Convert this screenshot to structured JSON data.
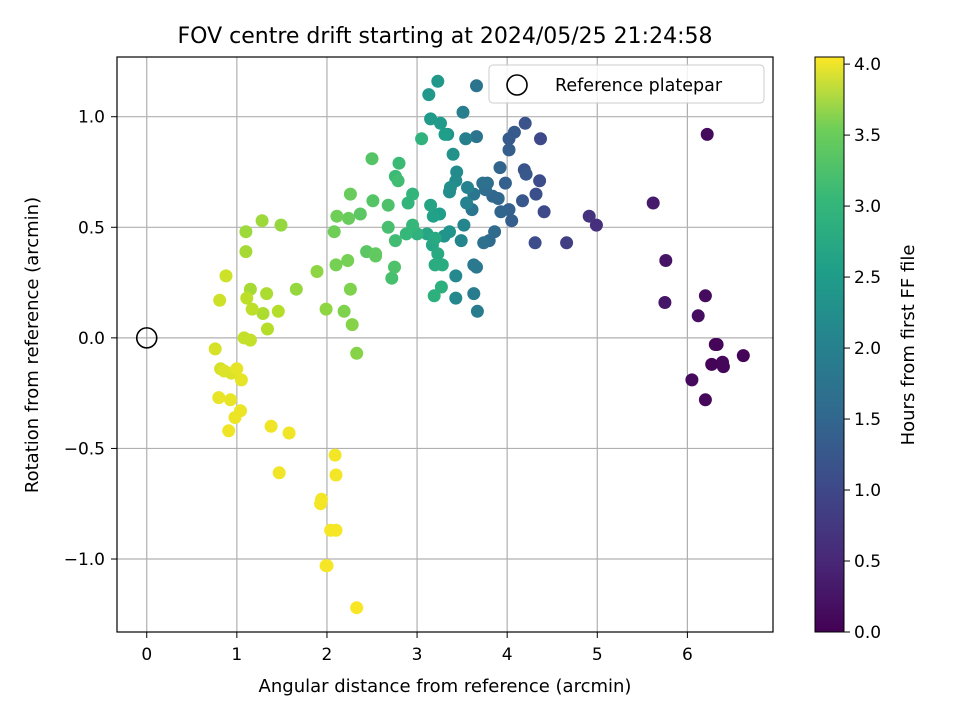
{
  "chart_data": {
    "type": "scatter",
    "title": "FOV centre drift starting at 2024/05/25 21:24:58",
    "xlabel": "Angular distance from reference (arcmin)",
    "ylabel": "Rotation from reference (arcmin)",
    "xlim": [
      -0.33,
      6.95
    ],
    "ylim": [
      -1.33,
      1.27
    ],
    "xticks": [
      0,
      1,
      2,
      3,
      4,
      5,
      6
    ],
    "xtick_labels": [
      "0",
      "1",
      "2",
      "3",
      "4",
      "5",
      "6"
    ],
    "yticks": [
      -1.0,
      -0.5,
      0.0,
      0.5,
      1.0
    ],
    "ytick_labels": [
      "−1.0",
      "−0.5",
      "0.0",
      "0.5",
      "1.0"
    ],
    "grid": true,
    "colormap": "viridis",
    "colorbar": {
      "label": "Hours from first FF file",
      "range": [
        0.0,
        4.05
      ],
      "ticks": [
        0.0,
        0.5,
        1.0,
        1.5,
        2.0,
        2.5,
        3.0,
        3.5,
        4.0
      ],
      "tick_labels": [
        "0.0",
        "0.5",
        "1.0",
        "1.5",
        "2.0",
        "2.5",
        "3.0",
        "3.5",
        "4.0"
      ]
    },
    "legend": {
      "position": "top-right",
      "entries": [
        "Reference platepar"
      ]
    },
    "reference_point": {
      "x": 0.0,
      "y": 0.0,
      "label": "Reference platepar"
    },
    "series": [
      {
        "points": [
          [
            6.22,
            0.92,
            0.1
          ],
          [
            6.62,
            -0.08,
            0.05
          ],
          [
            6.4,
            -0.13,
            0.07
          ],
          [
            6.39,
            -0.11,
            0.07
          ],
          [
            6.31,
            -0.03,
            0.06
          ],
          [
            6.33,
            -0.03,
            0.06
          ],
          [
            6.27,
            -0.12,
            0.05
          ],
          [
            6.2,
            -0.28,
            0.08
          ],
          [
            6.05,
            -0.19,
            0.1
          ],
          [
            6.2,
            0.19,
            0.12
          ],
          [
            6.12,
            0.1,
            0.15
          ],
          [
            5.76,
            0.35,
            0.22
          ],
          [
            5.75,
            0.16,
            0.25
          ],
          [
            5.62,
            0.61,
            0.3
          ],
          [
            4.99,
            0.51,
            0.55
          ],
          [
            4.91,
            0.55,
            0.6
          ],
          [
            4.66,
            0.43,
            0.75
          ],
          [
            4.41,
            0.57,
            0.9
          ],
          [
            4.31,
            0.43,
            0.95
          ],
          [
            4.37,
            0.9,
            0.9
          ],
          [
            4.36,
            0.71,
            0.95
          ],
          [
            4.32,
            0.65,
            1.0
          ],
          [
            4.2,
            0.97,
            1.05
          ],
          [
            4.19,
            0.76,
            1.05
          ],
          [
            4.21,
            0.74,
            1.1
          ],
          [
            4.17,
            0.62,
            1.1
          ],
          [
            4.08,
            0.93,
            1.15
          ],
          [
            4.02,
            0.9,
            1.15
          ],
          [
            4.02,
            0.85,
            1.2
          ],
          [
            4.05,
            0.53,
            1.2
          ],
          [
            4.02,
            0.58,
            1.25
          ],
          [
            3.98,
            0.7,
            1.25
          ],
          [
            3.93,
            0.57,
            1.3
          ],
          [
            3.92,
            0.77,
            1.3
          ],
          [
            3.9,
            0.63,
            1.35
          ],
          [
            3.84,
            0.64,
            1.35
          ],
          [
            3.86,
            0.48,
            1.4
          ],
          [
            3.8,
            0.44,
            1.4
          ],
          [
            3.78,
            0.7,
            1.45
          ],
          [
            3.76,
            0.67,
            1.45
          ],
          [
            3.73,
            0.7,
            1.5
          ],
          [
            3.74,
            0.43,
            1.5
          ],
          [
            3.66,
            1.14,
            1.55
          ],
          [
            3.66,
            0.91,
            1.55
          ],
          [
            3.63,
            0.65,
            1.6
          ],
          [
            3.61,
            0.58,
            1.6
          ],
          [
            3.63,
            0.33,
            1.65
          ],
          [
            3.66,
            0.32,
            1.65
          ],
          [
            3.67,
            0.12,
            1.7
          ],
          [
            3.63,
            0.2,
            1.7
          ],
          [
            3.54,
            0.9,
            1.75
          ],
          [
            3.51,
            1.02,
            1.75
          ],
          [
            3.56,
            0.68,
            1.8
          ],
          [
            3.55,
            0.61,
            1.8
          ],
          [
            3.52,
            0.51,
            1.85
          ],
          [
            3.49,
            0.44,
            1.85
          ],
          [
            3.43,
            0.28,
            1.9
          ],
          [
            3.43,
            0.18,
            1.9
          ],
          [
            3.44,
            0.75,
            1.95
          ],
          [
            3.43,
            0.71,
            1.95
          ],
          [
            3.37,
            0.68,
            2.0
          ],
          [
            3.36,
            0.66,
            2.0
          ],
          [
            3.4,
            0.83,
            2.05
          ],
          [
            3.34,
            0.92,
            2.05
          ],
          [
            3.36,
            0.48,
            2.1
          ],
          [
            3.3,
            0.46,
            2.1
          ],
          [
            3.23,
            1.16,
            2.15
          ],
          [
            3.13,
            1.1,
            2.15
          ],
          [
            3.15,
            0.99,
            2.2
          ],
          [
            3.26,
            0.97,
            2.2
          ],
          [
            3.31,
            0.92,
            2.25
          ],
          [
            3.25,
            0.56,
            2.25
          ],
          [
            3.18,
            0.55,
            2.3
          ],
          [
            3.15,
            0.6,
            2.35
          ],
          [
            3.11,
            0.47,
            2.4
          ],
          [
            3.17,
            0.42,
            2.4
          ],
          [
            3.2,
            0.45,
            2.45
          ],
          [
            3.23,
            0.38,
            2.45
          ],
          [
            3.2,
            0.33,
            2.5
          ],
          [
            3.28,
            0.33,
            2.5
          ],
          [
            3.27,
            0.23,
            2.55
          ],
          [
            3.19,
            0.19,
            2.55
          ],
          [
            3.05,
            0.9,
            2.6
          ],
          [
            3.0,
            0.47,
            2.6
          ],
          [
            2.95,
            0.65,
            2.65
          ],
          [
            2.9,
            0.61,
            2.65
          ],
          [
            2.95,
            0.51,
            2.7
          ],
          [
            2.88,
            0.47,
            2.7
          ],
          [
            2.8,
            0.79,
            2.75
          ],
          [
            2.76,
            0.73,
            2.75
          ],
          [
            2.79,
            0.71,
            2.8
          ],
          [
            2.76,
            0.44,
            2.8
          ],
          [
            2.68,
            0.5,
            2.85
          ],
          [
            2.72,
            0.27,
            2.85
          ],
          [
            2.75,
            0.32,
            2.9
          ],
          [
            2.68,
            0.6,
            2.9
          ],
          [
            2.5,
            0.81,
            2.95
          ],
          [
            2.51,
            0.62,
            2.95
          ],
          [
            2.37,
            0.56,
            3.0
          ],
          [
            2.44,
            0.39,
            3.0
          ],
          [
            2.54,
            0.38,
            3.05
          ],
          [
            2.54,
            0.37,
            3.05
          ],
          [
            2.26,
            0.65,
            3.1
          ],
          [
            2.24,
            0.54,
            3.1
          ],
          [
            2.11,
            0.55,
            3.15
          ],
          [
            2.08,
            0.48,
            3.15
          ],
          [
            2.23,
            0.35,
            3.2
          ],
          [
            2.1,
            0.33,
            3.2
          ],
          [
            2.26,
            0.22,
            3.25
          ],
          [
            2.19,
            0.12,
            3.25
          ],
          [
            2.28,
            0.06,
            3.3
          ],
          [
            2.33,
            -0.07,
            3.3
          ],
          [
            1.99,
            0.13,
            3.35
          ],
          [
            1.89,
            0.3,
            3.35
          ],
          [
            1.66,
            0.22,
            3.4
          ],
          [
            1.49,
            0.51,
            3.4
          ],
          [
            1.28,
            0.53,
            3.45
          ],
          [
            1.1,
            0.48,
            3.45
          ],
          [
            1.1,
            0.39,
            3.5
          ],
          [
            1.15,
            0.22,
            3.5
          ],
          [
            1.33,
            0.2,
            3.55
          ],
          [
            1.29,
            0.11,
            3.55
          ],
          [
            1.46,
            0.12,
            3.6
          ],
          [
            1.34,
            0.04,
            3.6
          ],
          [
            1.17,
            0.13,
            3.65
          ],
          [
            1.11,
            0.18,
            3.65
          ],
          [
            1.08,
            0.0,
            3.7
          ],
          [
            1.15,
            -0.01,
            3.7
          ],
          [
            0.88,
            0.28,
            3.75
          ],
          [
            0.81,
            0.17,
            3.75
          ],
          [
            0.76,
            -0.05,
            3.8
          ],
          [
            0.82,
            -0.14,
            3.8
          ],
          [
            0.86,
            -0.15,
            3.85
          ],
          [
            0.94,
            -0.16,
            3.85
          ],
          [
            1.0,
            -0.14,
            3.9
          ],
          [
            1.05,
            -0.19,
            3.9
          ],
          [
            0.8,
            -0.27,
            3.92
          ],
          [
            0.93,
            -0.28,
            3.92
          ],
          [
            1.04,
            -0.33,
            3.94
          ],
          [
            0.98,
            -0.36,
            3.94
          ],
          [
            0.91,
            -0.42,
            3.96
          ],
          [
            1.38,
            -0.4,
            3.96
          ],
          [
            1.58,
            -0.43,
            3.97
          ],
          [
            1.47,
            -0.61,
            3.97
          ],
          [
            2.09,
            -0.53,
            3.98
          ],
          [
            2.1,
            -0.62,
            3.98
          ],
          [
            1.94,
            -0.73,
            3.99
          ],
          [
            1.93,
            -0.75,
            3.99
          ],
          [
            2.04,
            -0.87,
            4.0
          ],
          [
            2.1,
            -0.87,
            4.0
          ],
          [
            2.0,
            -1.03,
            4.01
          ],
          [
            1.99,
            -1.03,
            4.01
          ],
          [
            2.33,
            -1.22,
            4.02
          ]
        ]
      }
    ]
  }
}
